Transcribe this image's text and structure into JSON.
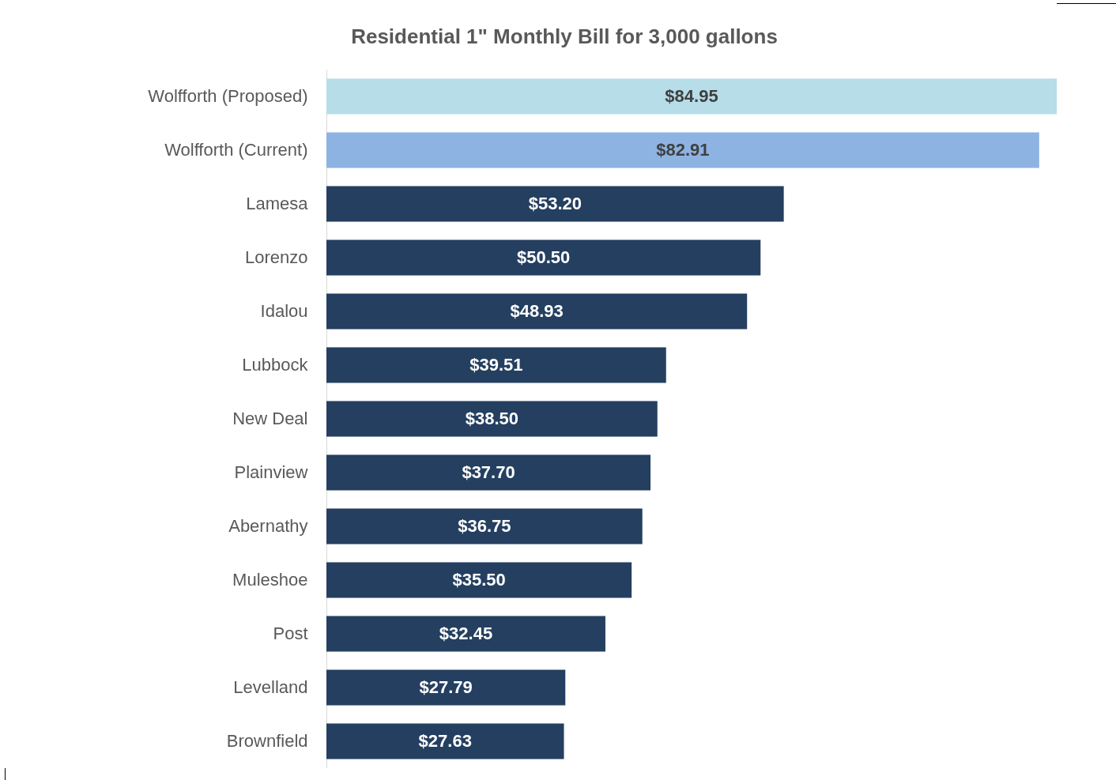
{
  "chart_data": {
    "type": "bar",
    "orientation": "horizontal",
    "title": "Residential 1\" Monthly Bill for 3,000 gallons",
    "categories": [
      "Wolfforth (Proposed)",
      "Wolfforth (Current)",
      "Lamesa",
      "Lorenzo",
      "Idalou",
      "Lubbock",
      "New Deal",
      "Plainview",
      "Abernathy",
      "Muleshoe",
      "Post",
      "Levelland",
      "Brownfield"
    ],
    "values": [
      84.95,
      82.91,
      53.2,
      50.5,
      48.93,
      39.51,
      38.5,
      37.7,
      36.75,
      35.5,
      32.45,
      27.79,
      27.63
    ],
    "colors": [
      "#b6dde8",
      "#8db3e2",
      "#243f60",
      "#243f60",
      "#243f60",
      "#243f60",
      "#243f60",
      "#243f60",
      "#243f60",
      "#243f60",
      "#243f60",
      "#243f60",
      "#243f60"
    ],
    "value_labels": [
      "$84.95",
      "$82.91",
      "$53.20",
      "$50.50",
      "$48.93",
      "$39.51",
      "$38.50",
      "$37.70",
      "$36.75",
      "$35.50",
      "$32.45",
      "$27.79",
      "$27.63"
    ]
  }
}
